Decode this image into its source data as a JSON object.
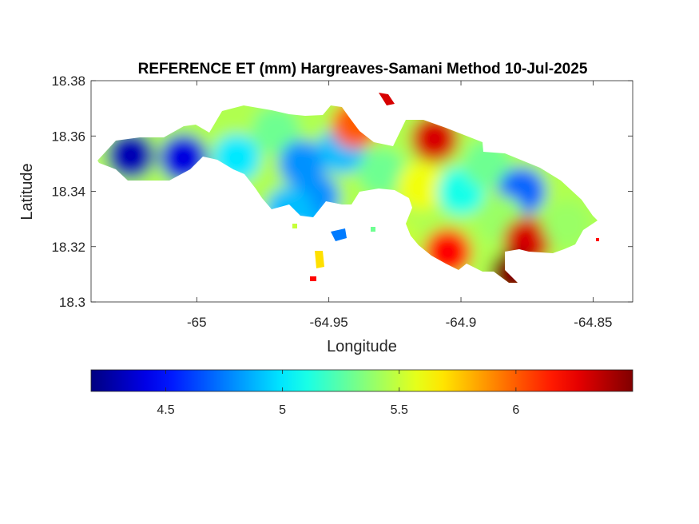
{
  "chart_data": {
    "type": "heatmap",
    "title": "REFERENCE ET (mm) Hargreaves-Samani Method  10-Jul-2025",
    "xlabel": "Longitude",
    "ylabel": "Latitude",
    "xlim": [
      -65.04,
      -64.835
    ],
    "ylim": [
      18.3,
      18.38
    ],
    "x_ticks": [
      -65,
      -64.95,
      -64.9,
      -64.85
    ],
    "x_tick_labels": [
      "-65",
      "-64.95",
      "-64.9",
      "-64.85"
    ],
    "y_ticks": [
      18.3,
      18.32,
      18.34,
      18.36,
      18.38
    ],
    "y_tick_labels": [
      "18.3",
      "18.32",
      "18.34",
      "18.36",
      "18.38"
    ],
    "grid": false,
    "colormap": "jet",
    "colorbar": {
      "location": "bottom",
      "range": [
        4.18,
        6.5
      ],
      "ticks": [
        4.5,
        5,
        5.5,
        6
      ],
      "tick_labels": [
        "4.5",
        "5",
        "5.5",
        "6"
      ]
    },
    "hotspots": [
      {
        "lon": -65.025,
        "lat": 18.353,
        "value": 4.3
      },
      {
        "lon": -65.005,
        "lat": 18.352,
        "value": 4.4
      },
      {
        "lon": -64.985,
        "lat": 18.352,
        "value": 5.0
      },
      {
        "lon": -64.97,
        "lat": 18.362,
        "value": 5.3
      },
      {
        "lon": -64.96,
        "lat": 18.35,
        "value": 4.8
      },
      {
        "lon": -64.945,
        "lat": 18.355,
        "value": 4.9
      },
      {
        "lon": -64.955,
        "lat": 18.338,
        "value": 4.8
      },
      {
        "lon": -64.965,
        "lat": 18.333,
        "value": 4.9
      },
      {
        "lon": -64.94,
        "lat": 18.364,
        "value": 6.0
      },
      {
        "lon": -64.93,
        "lat": 18.347,
        "value": 5.3
      },
      {
        "lon": -64.91,
        "lat": 18.359,
        "value": 6.3
      },
      {
        "lon": -64.915,
        "lat": 18.342,
        "value": 5.6
      },
      {
        "lon": -64.9,
        "lat": 18.34,
        "value": 5.1
      },
      {
        "lon": -64.89,
        "lat": 18.35,
        "value": 5.3
      },
      {
        "lon": -64.877,
        "lat": 18.34,
        "value": 4.7
      },
      {
        "lon": -64.885,
        "lat": 18.33,
        "value": 5.4
      },
      {
        "lon": -64.875,
        "lat": 18.322,
        "value": 6.3
      },
      {
        "lon": -64.905,
        "lat": 18.318,
        "value": 6.2
      },
      {
        "lon": -64.88,
        "lat": 18.31,
        "value": 6.5
      },
      {
        "lon": -64.86,
        "lat": 18.328,
        "value": 5.4
      },
      {
        "lon": -64.925,
        "lat": 18.322,
        "value": 5.5
      },
      {
        "lon": -64.953,
        "lat": 18.323,
        "value": 4.9
      },
      {
        "lon": -64.965,
        "lat": 18.318,
        "value": 5.7
      }
    ]
  }
}
